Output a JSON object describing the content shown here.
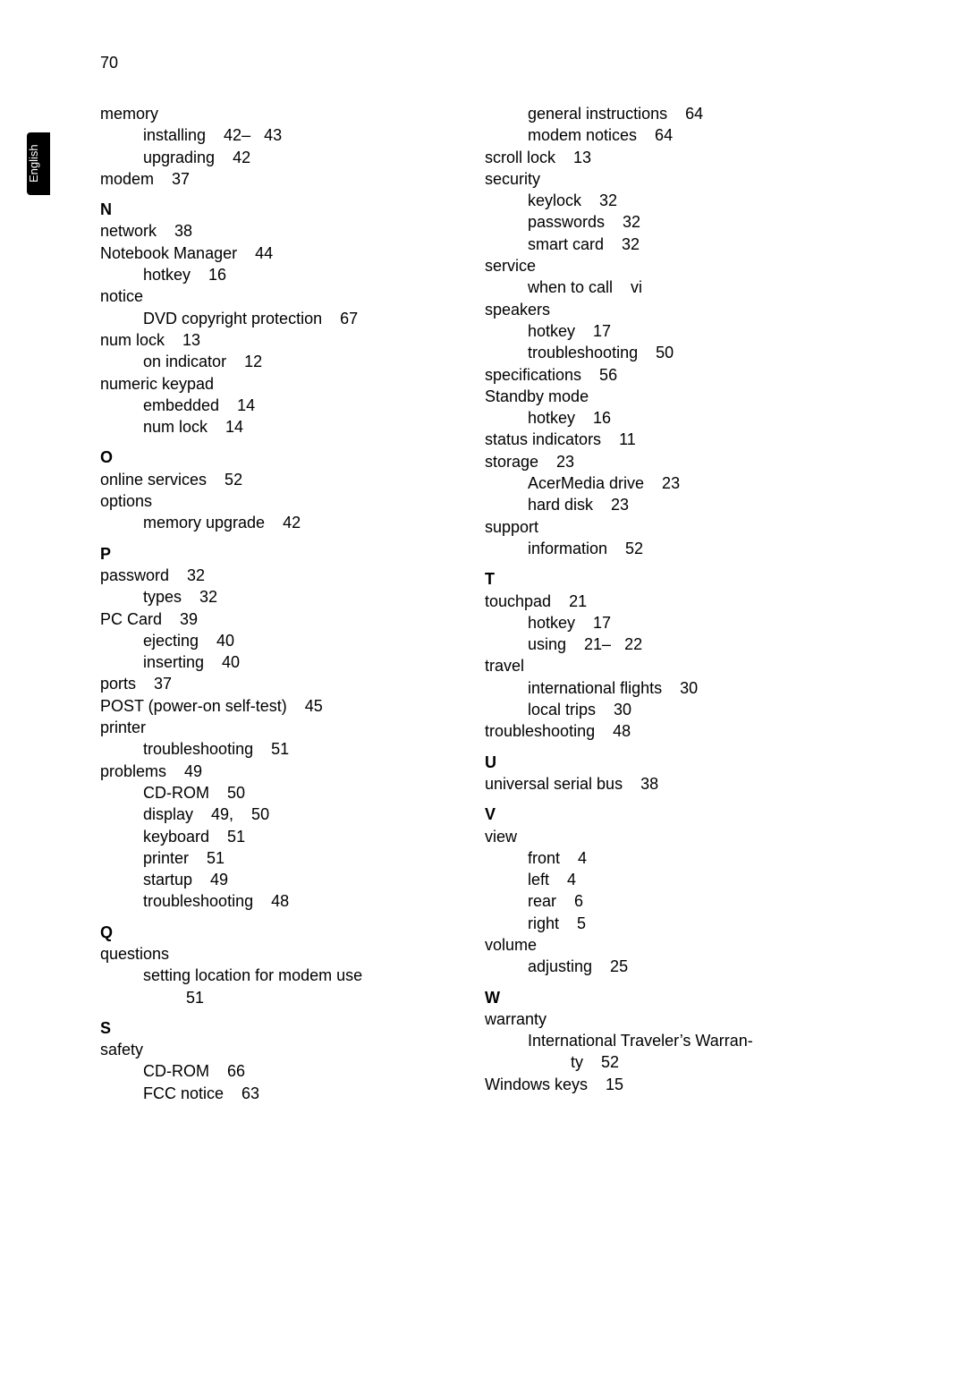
{
  "page_number": "70",
  "tab_label": "English",
  "left_column": [
    {
      "t": "memory",
      "c": "entry"
    },
    {
      "t": "installing    42–   43",
      "c": "entry sub1"
    },
    {
      "t": "upgrading    42",
      "c": "entry sub1"
    },
    {
      "t": "modem    37",
      "c": "entry"
    },
    {
      "t": "N",
      "c": "entry letter"
    },
    {
      "t": "network    38",
      "c": "entry"
    },
    {
      "t": "Notebook Manager    44",
      "c": "entry"
    },
    {
      "t": "hotkey    16",
      "c": "entry sub1"
    },
    {
      "t": "notice",
      "c": "entry"
    },
    {
      "t": "DVD copyright protection    67",
      "c": "entry sub1"
    },
    {
      "t": "num lock    13",
      "c": "entry"
    },
    {
      "t": "on indicator    12",
      "c": "entry sub1"
    },
    {
      "t": "numeric keypad",
      "c": "entry"
    },
    {
      "t": "embedded    14",
      "c": "entry sub1"
    },
    {
      "t": "num lock    14",
      "c": "entry sub1"
    },
    {
      "t": "O",
      "c": "entry letter"
    },
    {
      "t": "online services    52",
      "c": "entry"
    },
    {
      "t": "options",
      "c": "entry"
    },
    {
      "t": "memory upgrade    42",
      "c": "entry sub1"
    },
    {
      "t": "P",
      "c": "entry letter"
    },
    {
      "t": "password    32",
      "c": "entry"
    },
    {
      "t": "types    32",
      "c": "entry sub1"
    },
    {
      "t": "PC Card    39",
      "c": "entry"
    },
    {
      "t": "ejecting    40",
      "c": "entry sub1"
    },
    {
      "t": "inserting    40",
      "c": "entry sub1"
    },
    {
      "t": "ports    37",
      "c": "entry"
    },
    {
      "t": "POST (power-on self-test)    45",
      "c": "entry"
    },
    {
      "t": "printer",
      "c": "entry"
    },
    {
      "t": "troubleshooting    51",
      "c": "entry sub1"
    },
    {
      "t": "problems    49",
      "c": "entry"
    },
    {
      "t": "CD-ROM    50",
      "c": "entry sub1"
    },
    {
      "t": "display    49,    50",
      "c": "entry sub1"
    },
    {
      "t": "keyboard    51",
      "c": "entry sub1"
    },
    {
      "t": "printer    51",
      "c": "entry sub1"
    },
    {
      "t": "startup    49",
      "c": "entry sub1"
    },
    {
      "t": "troubleshooting    48",
      "c": "entry sub1"
    },
    {
      "t": "Q",
      "c": "entry letter"
    },
    {
      "t": "questions",
      "c": "entry"
    },
    {
      "t": "setting location for modem use",
      "c": "entry sub1 justify"
    },
    {
      "t": "51",
      "c": "entry sub2"
    },
    {
      "t": "S",
      "c": "entry letter"
    },
    {
      "t": "safety",
      "c": "entry"
    },
    {
      "t": "CD-ROM    66",
      "c": "entry sub1"
    },
    {
      "t": "FCC notice    63",
      "c": "entry sub1"
    }
  ],
  "right_column": [
    {
      "t": "general instructions    64",
      "c": "entry sub1"
    },
    {
      "t": "modem notices    64",
      "c": "entry sub1"
    },
    {
      "t": "scroll lock    13",
      "c": "entry"
    },
    {
      "t": "security",
      "c": "entry"
    },
    {
      "t": "keylock    32",
      "c": "entry sub1"
    },
    {
      "t": "passwords    32",
      "c": "entry sub1"
    },
    {
      "t": "smart card    32",
      "c": "entry sub1"
    },
    {
      "t": "service",
      "c": "entry"
    },
    {
      "t": "when to call    vi",
      "c": "entry sub1"
    },
    {
      "t": "speakers",
      "c": "entry"
    },
    {
      "t": "hotkey    17",
      "c": "entry sub1"
    },
    {
      "t": "troubleshooting    50",
      "c": "entry sub1"
    },
    {
      "t": "specifications    56",
      "c": "entry"
    },
    {
      "t": "Standby mode",
      "c": "entry"
    },
    {
      "t": "hotkey    16",
      "c": "entry sub1"
    },
    {
      "t": "status indicators    11",
      "c": "entry"
    },
    {
      "t": "storage    23",
      "c": "entry"
    },
    {
      "t": "AcerMedia drive    23",
      "c": "entry sub1"
    },
    {
      "t": "hard disk    23",
      "c": "entry sub1"
    },
    {
      "t": "support",
      "c": "entry"
    },
    {
      "t": "information    52",
      "c": "entry sub1"
    },
    {
      "t": "T",
      "c": "entry letter"
    },
    {
      "t": "touchpad    21",
      "c": "entry"
    },
    {
      "t": "hotkey    17",
      "c": "entry sub1"
    },
    {
      "t": "using    21–   22",
      "c": "entry sub1"
    },
    {
      "t": "travel",
      "c": "entry"
    },
    {
      "t": "international flights    30",
      "c": "entry sub1"
    },
    {
      "t": "local trips    30",
      "c": "entry sub1"
    },
    {
      "t": "troubleshooting    48",
      "c": "entry"
    },
    {
      "t": "U",
      "c": "entry letter"
    },
    {
      "t": "universal serial bus    38",
      "c": "entry"
    },
    {
      "t": "V",
      "c": "entry letter"
    },
    {
      "t": "view",
      "c": "entry"
    },
    {
      "t": "front    4",
      "c": "entry sub1"
    },
    {
      "t": "left    4",
      "c": "entry sub1"
    },
    {
      "t": "rear    6",
      "c": "entry sub1"
    },
    {
      "t": "right    5",
      "c": "entry sub1"
    },
    {
      "t": "volume",
      "c": "entry"
    },
    {
      "t": "adjusting    25",
      "c": "entry sub1"
    },
    {
      "t": "W",
      "c": "entry letter"
    },
    {
      "t": "warranty",
      "c": "entry"
    },
    {
      "t": "International Traveler’s Warran-",
      "c": "entry sub1 justify"
    },
    {
      "t": "ty    52",
      "c": "entry sub2"
    },
    {
      "t": "Windows keys    15",
      "c": "entry"
    }
  ]
}
